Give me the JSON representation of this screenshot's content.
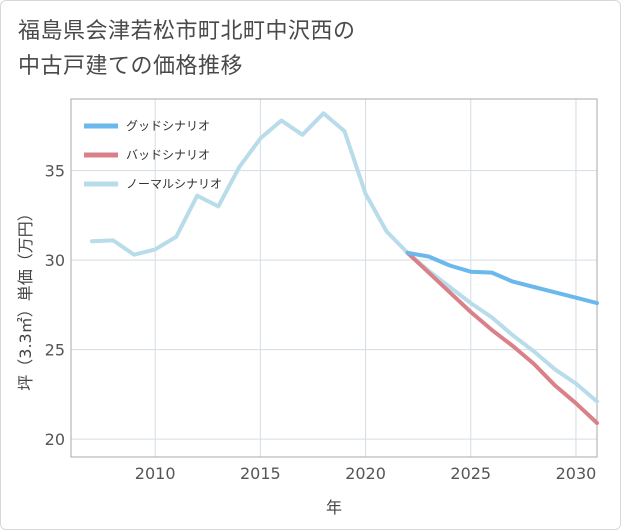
{
  "title": {
    "line1": "福島県会津若松市町北町中沢西の",
    "line2": "中古戸建ての価格推移"
  },
  "chart_data": {
    "type": "line",
    "title": "福島県会津若松市町北町中沢西の中古戸建ての価格推移",
    "xlabel": "年",
    "ylabel": "坪（3.3㎡）単価（万円）",
    "xlim": [
      2006,
      2031
    ],
    "ylim": [
      19,
      39
    ],
    "xticks": [
      2010,
      2015,
      2020,
      2025,
      2030
    ],
    "yticks": [
      20,
      25,
      30,
      35
    ],
    "grid": true,
    "legend_position": "top-left",
    "series": [
      {
        "name": "グッドシナリオ",
        "color": "#6bb8ec",
        "x": [
          2022,
          2023,
          2024,
          2025,
          2026,
          2027,
          2028,
          2029,
          2030,
          2031
        ],
        "y": [
          30.4,
          30.2,
          29.7,
          29.35,
          29.3,
          28.8,
          28.5,
          28.2,
          27.9,
          27.6
        ]
      },
      {
        "name": "バッドシナリオ",
        "color": "#d98088",
        "x": [
          2022,
          2023,
          2024,
          2025,
          2026,
          2027,
          2028,
          2029,
          2030,
          2031
        ],
        "y": [
          30.4,
          29.3,
          28.2,
          27.1,
          26.1,
          25.2,
          24.2,
          23.0,
          22.0,
          20.9
        ]
      },
      {
        "name": "ノーマルシナリオ",
        "color": "#b8dcea",
        "x": [
          2007,
          2008,
          2009,
          2010,
          2011,
          2012,
          2013,
          2014,
          2015,
          2016,
          2017,
          2018,
          2019,
          2020,
          2021,
          2022,
          2023,
          2024,
          2025,
          2026,
          2027,
          2028,
          2029,
          2030,
          2031
        ],
        "y": [
          31.05,
          31.1,
          30.3,
          30.6,
          31.3,
          33.6,
          33.0,
          35.2,
          36.8,
          37.8,
          37.0,
          38.2,
          37.2,
          33.7,
          31.6,
          30.4,
          29.4,
          28.5,
          27.6,
          26.8,
          25.8,
          24.9,
          23.9,
          23.1,
          22.1
        ]
      }
    ]
  }
}
